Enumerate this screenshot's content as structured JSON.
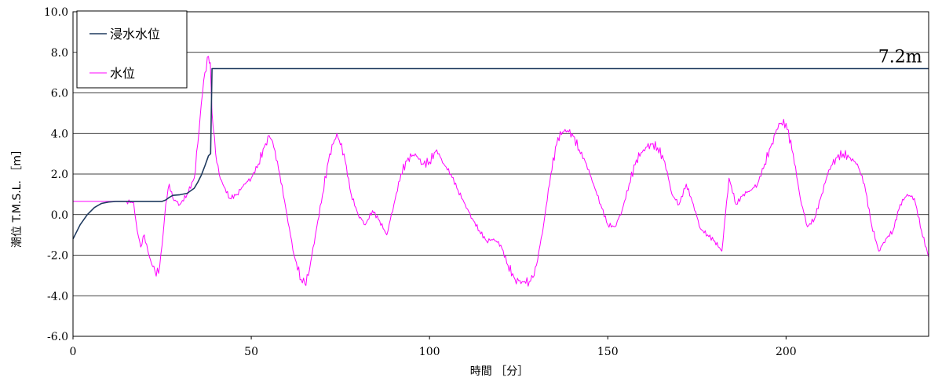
{
  "chart_data": {
    "type": "line",
    "title": "",
    "xlabel": "時間 ［分］",
    "ylabel": "潮位 T.M.S.L. ［m］",
    "xlim": [
      0,
      240
    ],
    "ylim": [
      -6.0,
      10.0
    ],
    "x_ticks": [
      0,
      50,
      100,
      150,
      200
    ],
    "x_tick_labels": [
      "0",
      "50",
      "100",
      "150",
      "200"
    ],
    "y_ticks": [
      -6,
      -4,
      -2,
      0,
      2,
      4,
      6,
      8,
      10
    ],
    "y_tick_labels": [
      "-6.0",
      "-4.0",
      "-2.0",
      "0.0",
      "2.0",
      "4.0",
      "6.0",
      "8.0",
      "10.0"
    ],
    "grid": "horizontal",
    "legend": "top-left",
    "annotations": [
      {
        "text": "7.2m",
        "x": 232,
        "y": 7.2
      }
    ],
    "series": [
      {
        "name": "浸水水位",
        "color": "#1f3a5f",
        "style": "smooth",
        "x": [
          0,
          2,
          4,
          6,
          8,
          10,
          12,
          15,
          20,
          25,
          26,
          27,
          28,
          30,
          32,
          34,
          35,
          36,
          37,
          38,
          38.6,
          39,
          40,
          50,
          100,
          150,
          200,
          240
        ],
        "y": [
          -1.2,
          -0.5,
          0.0,
          0.35,
          0.55,
          0.62,
          0.65,
          0.65,
          0.65,
          0.65,
          0.72,
          0.85,
          0.95,
          0.98,
          1.05,
          1.3,
          1.6,
          1.95,
          2.4,
          2.9,
          3.0,
          7.2,
          7.2,
          7.2,
          7.2,
          7.2,
          7.2,
          7.2
        ]
      },
      {
        "name": "水位",
        "color": "#ff00ff",
        "style": "jagged",
        "x": [
          0,
          5,
          10,
          15,
          17,
          18,
          19,
          20,
          21,
          22,
          23,
          24,
          25,
          26,
          27,
          28,
          30,
          32,
          34,
          35,
          36,
          37,
          38,
          38.5,
          39,
          40,
          41,
          42,
          44,
          46,
          48,
          50,
          52,
          54,
          55,
          56,
          58,
          60,
          62,
          64,
          65,
          66,
          68,
          70,
          72,
          74,
          76,
          78,
          80,
          82,
          84,
          86,
          88,
          90,
          92,
          94,
          96,
          98,
          100,
          102,
          104,
          106,
          108,
          110,
          112,
          114,
          116,
          118,
          120,
          122,
          124,
          126,
          128,
          129,
          130,
          132,
          134,
          136,
          138,
          140,
          142,
          144,
          146,
          148,
          150,
          152,
          154,
          156,
          158,
          160,
          162,
          164,
          166,
          168,
          170,
          172,
          174,
          176,
          178,
          180,
          182,
          184,
          186,
          188,
          190,
          192,
          194,
          196,
          198,
          200,
          202,
          204,
          206,
          208,
          210,
          212,
          214,
          216,
          218,
          220,
          222,
          224,
          226,
          228,
          230,
          232,
          234,
          236,
          238,
          240
        ],
        "y": [
          0.65,
          0.65,
          0.65,
          0.65,
          0.6,
          -0.8,
          -1.6,
          -1.0,
          -1.8,
          -2.4,
          -2.8,
          -2.9,
          -1.5,
          0.5,
          1.5,
          0.8,
          0.5,
          1.0,
          1.8,
          3.5,
          5.5,
          7.0,
          7.8,
          7.5,
          5.0,
          3.0,
          2.0,
          1.5,
          0.8,
          1.0,
          1.5,
          1.8,
          2.5,
          3.5,
          3.9,
          3.6,
          2.0,
          0.0,
          -2.0,
          -3.2,
          -3.4,
          -3.0,
          -1.0,
          1.0,
          3.0,
          4.0,
          3.0,
          1.0,
          0.0,
          -0.5,
          0.2,
          -0.3,
          -1.0,
          0.5,
          2.0,
          2.8,
          3.0,
          2.5,
          2.6,
          3.2,
          2.5,
          2.0,
          1.2,
          0.5,
          -0.2,
          -0.8,
          -1.3,
          -1.2,
          -1.5,
          -2.5,
          -3.2,
          -3.3,
          -3.3,
          -3.1,
          -2.5,
          -0.5,
          2.0,
          3.8,
          4.2,
          4.0,
          3.2,
          2.5,
          1.5,
          0.5,
          -0.5,
          -0.6,
          0.2,
          1.5,
          2.7,
          3.2,
          3.5,
          3.3,
          2.6,
          1.0,
          0.5,
          1.5,
          0.5,
          -0.7,
          -1.0,
          -1.3,
          -1.8,
          1.8,
          0.5,
          1.0,
          1.2,
          1.5,
          2.5,
          3.5,
          4.5,
          4.5,
          3.0,
          0.8,
          -0.6,
          -0.2,
          1.0,
          2.2,
          2.8,
          3.0,
          2.8,
          2.5,
          1.5,
          -0.5,
          -1.8,
          -1.2,
          -0.8,
          0.5,
          1.0,
          0.8,
          -0.8,
          -2.1
        ]
      }
    ]
  }
}
